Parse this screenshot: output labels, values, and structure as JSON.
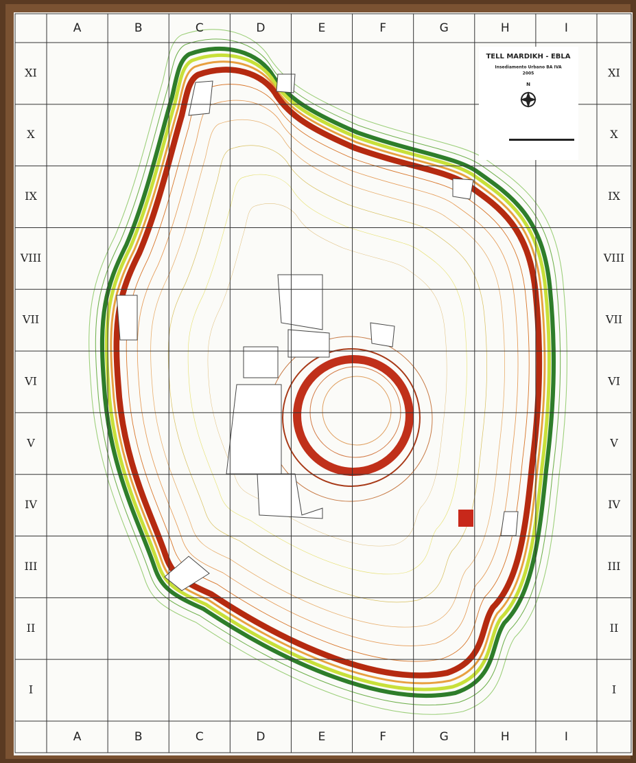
{
  "map": {
    "columns": [
      "A",
      "B",
      "C",
      "D",
      "E",
      "F",
      "G",
      "H",
      "I"
    ],
    "rows": [
      "XI",
      "X",
      "IX",
      "VIII",
      "VII",
      "VI",
      "V",
      "IV",
      "III",
      "II",
      "I"
    ],
    "legend": {
      "title": "TELL MARDIKH - EBLA",
      "subtitle": "Insediamento Urbano BA IVA",
      "year": "2005",
      "north": "N"
    }
  }
}
